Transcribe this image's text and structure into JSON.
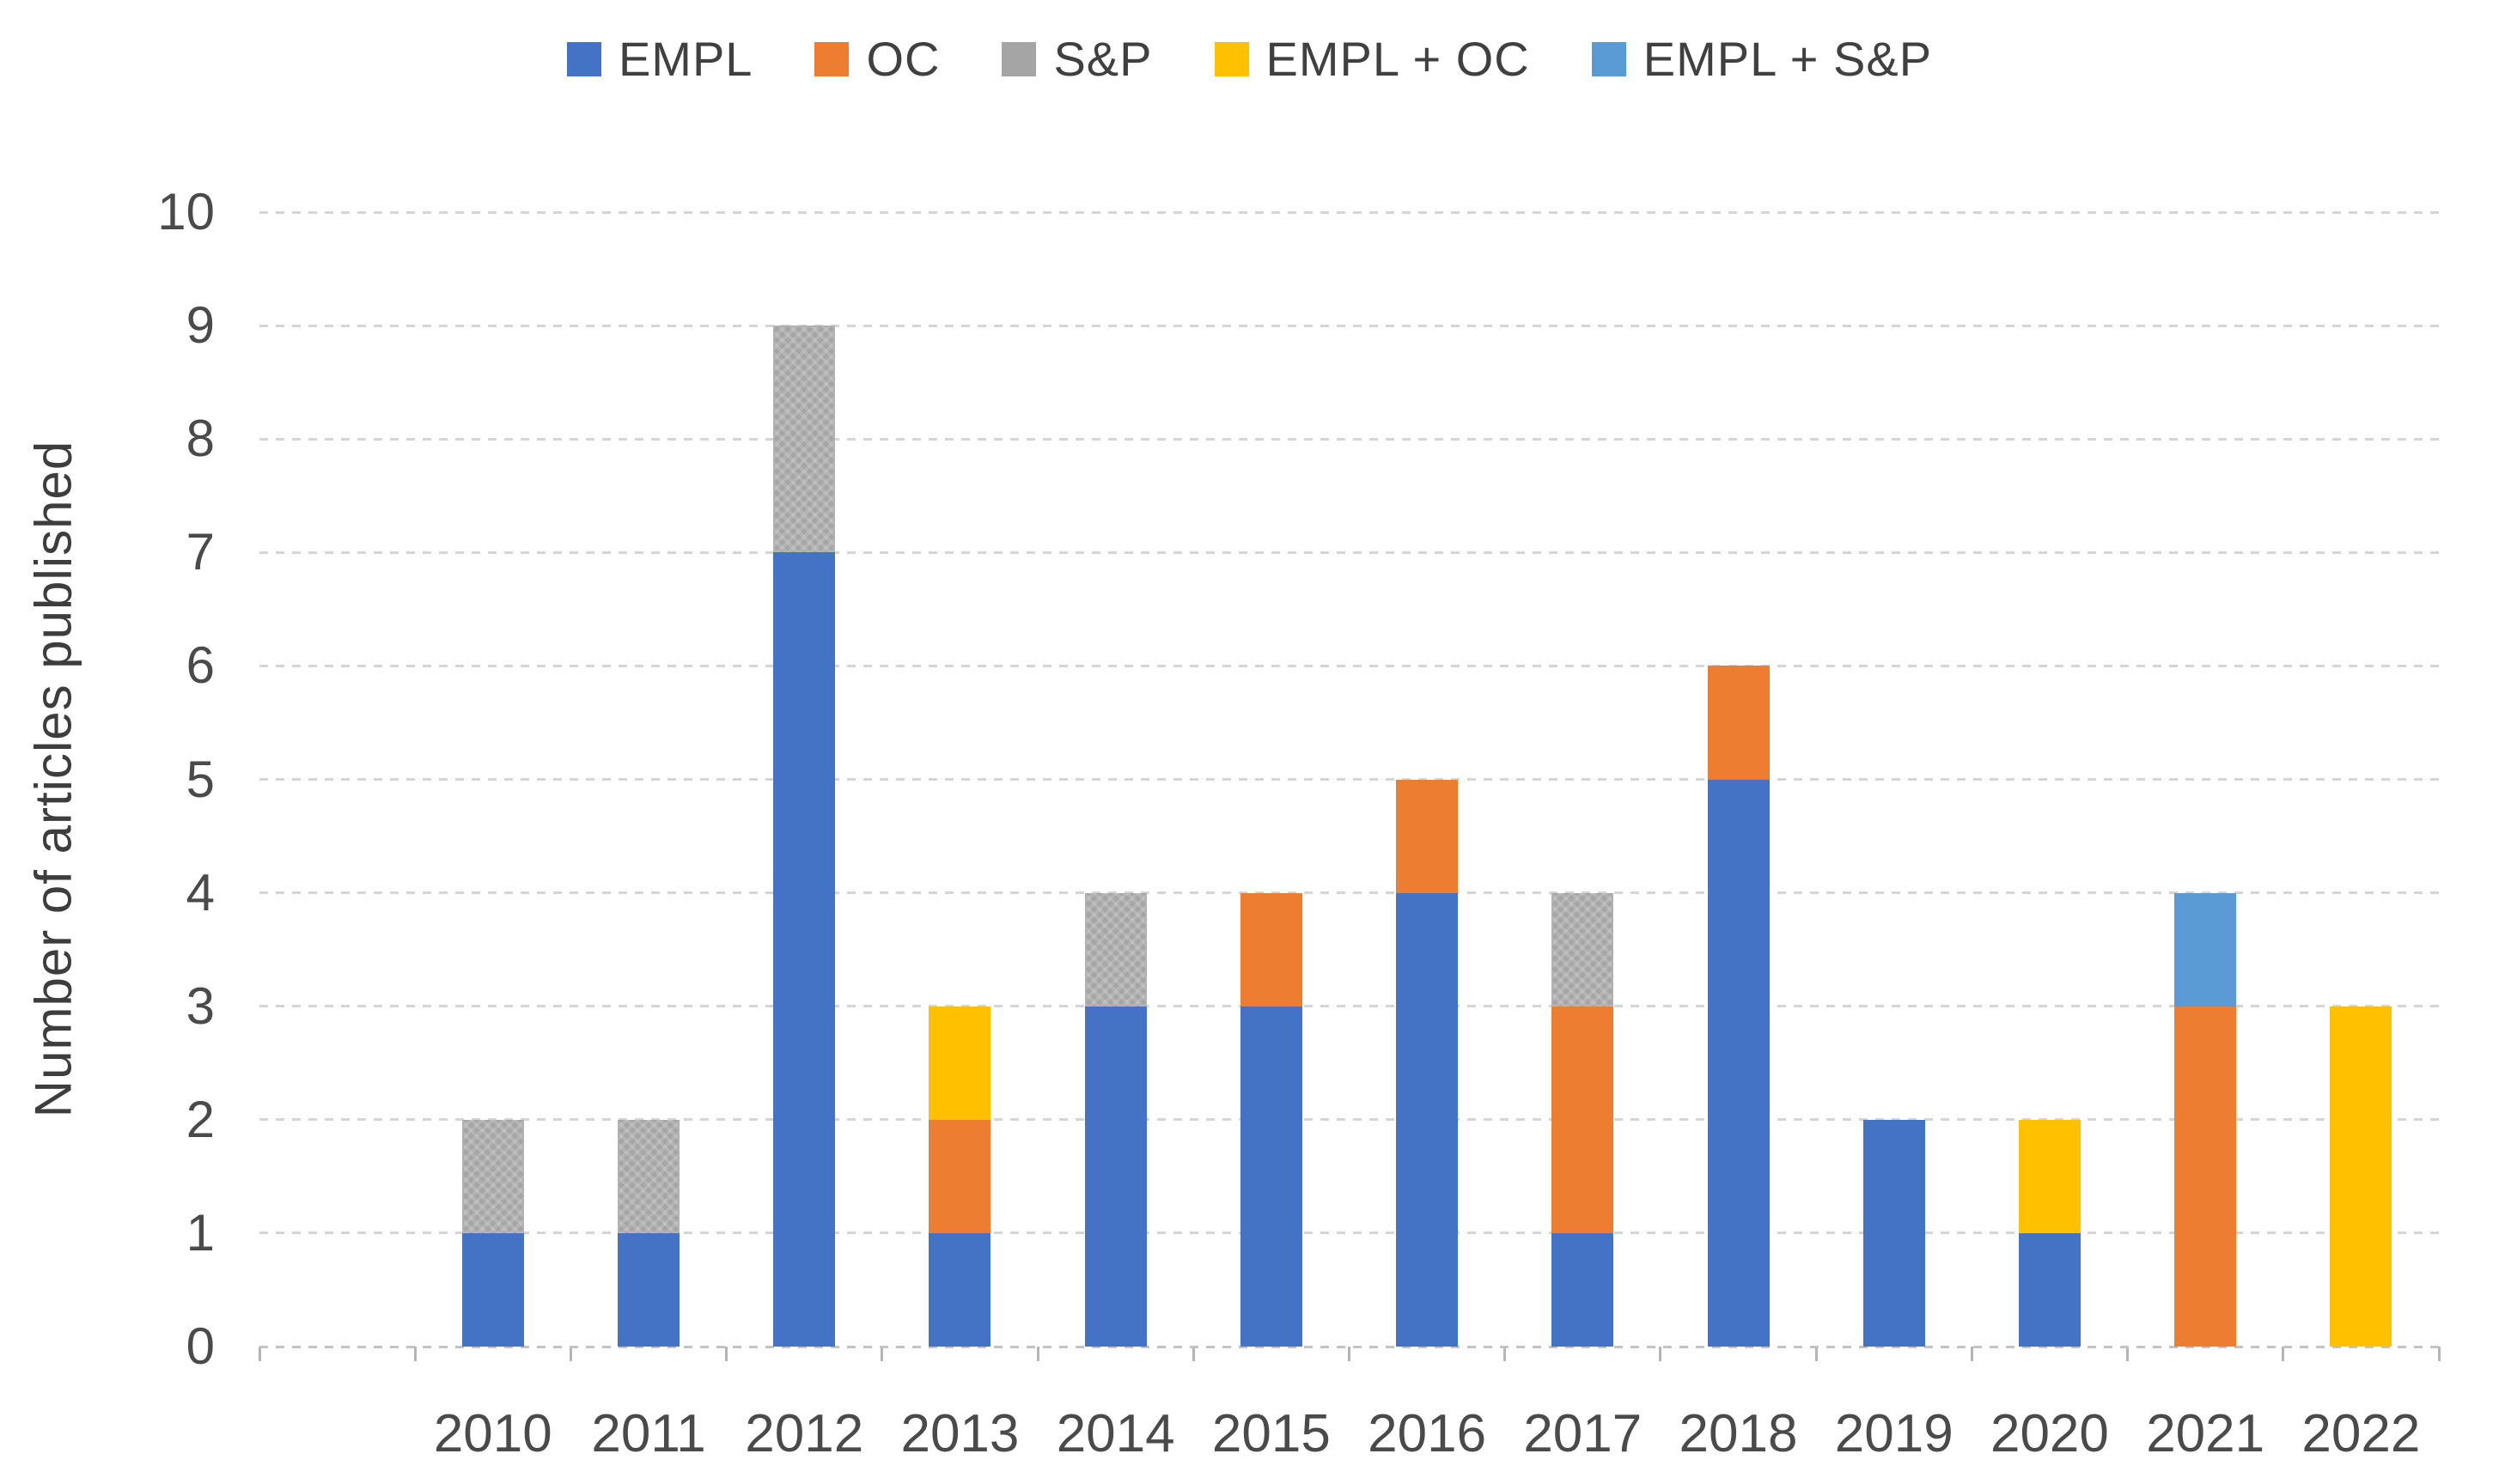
{
  "chart_data": {
    "type": "bar",
    "stacked": true,
    "title": "",
    "xlabel": "",
    "ylabel": "Number of articles published",
    "ylim": [
      0,
      10
    ],
    "yticks": [
      0,
      1,
      2,
      3,
      4,
      5,
      6,
      7,
      8,
      9,
      10
    ],
    "grid": true,
    "legend_position": "top",
    "categories": [
      "2010",
      "2011",
      "2012",
      "2013",
      "2014",
      "2015",
      "2016",
      "2017",
      "2018",
      "2019",
      "2020",
      "2021",
      "2022"
    ],
    "series": [
      {
        "name": "EMPL",
        "color": "#4472C4",
        "pattern": "solid",
        "values": [
          1,
          1,
          7,
          1,
          3,
          3,
          4,
          1,
          5,
          2,
          1,
          0,
          0
        ]
      },
      {
        "name": "OC",
        "color": "#ED7D31",
        "pattern": "solid",
        "values": [
          0,
          0,
          0,
          1,
          0,
          1,
          1,
          2,
          1,
          0,
          0,
          3,
          0
        ]
      },
      {
        "name": "S&P",
        "color": "#A5A5A5",
        "pattern": "hatch",
        "values": [
          1,
          1,
          2,
          0,
          1,
          0,
          0,
          1,
          0,
          0,
          0,
          0,
          0
        ]
      },
      {
        "name": "EMPL + OC",
        "color": "#FFC000",
        "pattern": "solid",
        "values": [
          0,
          0,
          0,
          1,
          0,
          0,
          0,
          0,
          0,
          0,
          1,
          0,
          3
        ]
      },
      {
        "name": "EMPL + S&P",
        "color": "#5B9BD5",
        "pattern": "solid",
        "values": [
          0,
          0,
          0,
          0,
          0,
          0,
          0,
          0,
          0,
          0,
          0,
          1,
          0
        ]
      }
    ],
    "colors": {
      "grid": "#d5d5d5",
      "axis": "#c3c3c3",
      "tick_text": "#4a4a4a",
      "legend_text": "#404040"
    }
  }
}
